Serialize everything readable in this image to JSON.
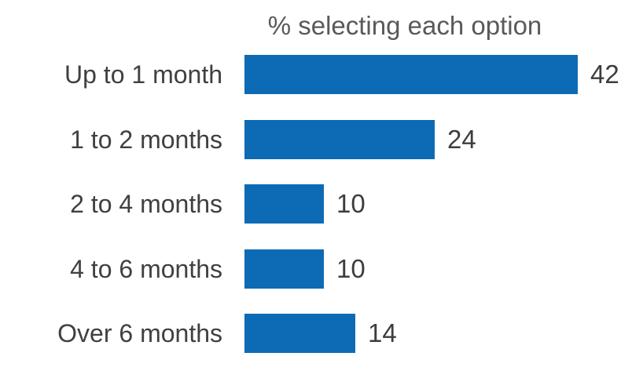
{
  "chart_data": {
    "type": "bar",
    "orientation": "horizontal",
    "title": "% selecting each option",
    "categories": [
      "Up to 1 month",
      "1 to 2 months",
      "2 to 4 months",
      "4 to 6 months",
      "Over 6 months"
    ],
    "values": [
      42,
      24,
      10,
      10,
      14
    ],
    "xlim": [
      0,
      42
    ],
    "grid": false,
    "legend": false,
    "data_labels": true,
    "colors": {
      "bar": "#0d6bb5",
      "title_text": "#595959",
      "category_text": "#404040",
      "value_text": "#3d3d3d",
      "background": "#ffffff"
    }
  }
}
